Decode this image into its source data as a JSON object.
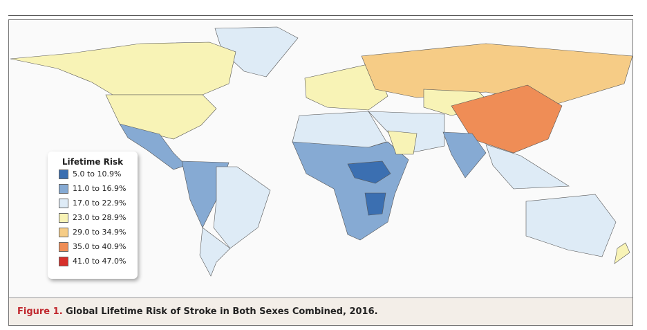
{
  "legend": {
    "title": "Lifetime Risk",
    "items": [
      {
        "label": "5.0 to 10.9%",
        "color": "#3b6fb1"
      },
      {
        "label": "11.0 to 16.9%",
        "color": "#86aad3"
      },
      {
        "label": "17.0 to 22.9%",
        "color": "#deebf6"
      },
      {
        "label": "23.0 to 28.9%",
        "color": "#f8f3b6"
      },
      {
        "label": "29.0 to 34.9%",
        "color": "#f6cc86"
      },
      {
        "label": "35.0 to 40.9%",
        "color": "#ef8d56"
      },
      {
        "label": "41.0 to 47.0%",
        "color": "#d7302b"
      }
    ]
  },
  "caption": {
    "label": "Figure 1.",
    "text": "Global Lifetime Risk of Stroke in Both Sexes Combined, 2016."
  }
}
